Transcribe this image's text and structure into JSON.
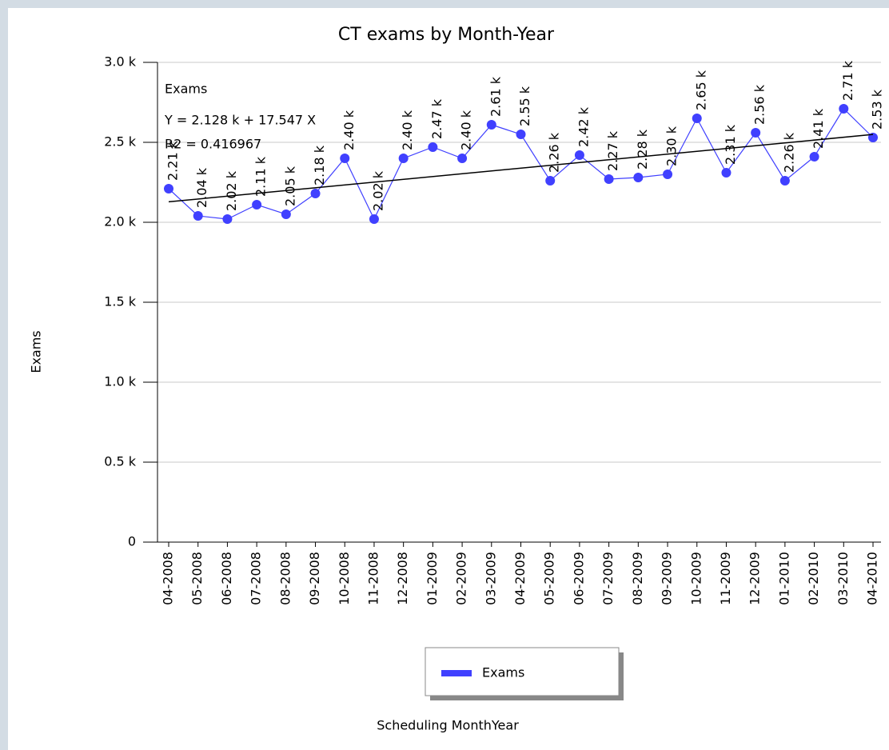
{
  "chart_data": {
    "type": "line",
    "title": "CT exams by Month-Year",
    "x_label": "Scheduling MonthYear",
    "y_label": "Exams",
    "categories": [
      "04-2008",
      "05-2008",
      "06-2008",
      "07-2008",
      "08-2008",
      "09-2008",
      "10-2008",
      "11-2008",
      "12-2008",
      "01-2009",
      "02-2009",
      "03-2009",
      "04-2009",
      "05-2009",
      "06-2009",
      "07-2009",
      "08-2009",
      "09-2009",
      "10-2009",
      "11-2009",
      "12-2009",
      "01-2010",
      "02-2010",
      "03-2010",
      "04-2010"
    ],
    "series": [
      {
        "name": "Exams",
        "color": "#4040ff",
        "values": [
          2210,
          2040,
          2020,
          2110,
          2050,
          2180,
          2400,
          2020,
          2400,
          2470,
          2400,
          2610,
          2550,
          2260,
          2420,
          2270,
          2280,
          2300,
          2650,
          2310,
          2560,
          2260,
          2410,
          2710,
          2530
        ],
        "value_labels": [
          "2.21 k",
          "2.04 k",
          "2.02 k",
          "2.11 k",
          "2.05 k",
          "2.18 k",
          "2.40 k",
          "2.02 k",
          "2.40 k",
          "2.47 k",
          "2.40 k",
          "2.61 k",
          "2.55 k",
          "2.26 k",
          "2.42 k",
          "2.27 k",
          "2.28 k",
          "2.30 k",
          "2.65 k",
          "2.31 k",
          "2.56 k",
          "2.26 k",
          "2.41 k",
          "2.71 k",
          "2.53 k"
        ]
      }
    ],
    "trendline": {
      "name": "Exams",
      "equation": "Y = 2.128 k + 17.547 X",
      "r2": "R2 = 0.416967",
      "intercept": 2128,
      "slope": 17.547,
      "color": "#000000"
    },
    "ylim": [
      0,
      3000
    ],
    "yticks": [
      0,
      {
        "value": 500,
        "label": "0.5 k"
      },
      {
        "value": 1000,
        "label": "1.0 k"
      },
      {
        "value": 1500,
        "label": "1.5 k"
      },
      {
        "value": 2000,
        "label": "2.0 k"
      },
      {
        "value": 2500,
        "label": "2.5 k"
      },
      {
        "value": 3000,
        "label": "3.0 k"
      }
    ],
    "grid": true
  }
}
